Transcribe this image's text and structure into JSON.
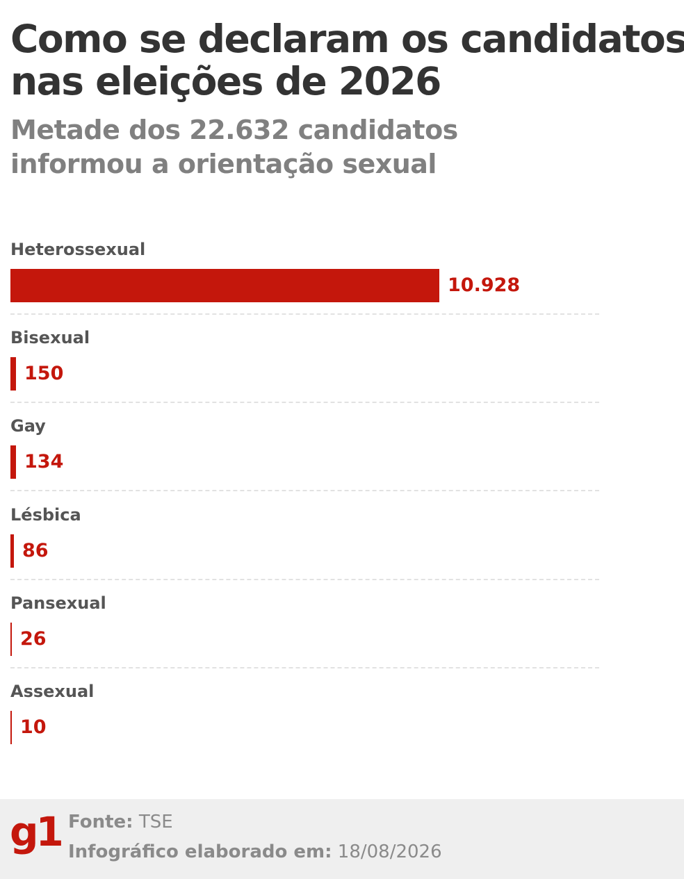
{
  "header": {
    "title_line1": "Como se declaram os candidatos",
    "title_line2": "nas eleições de 2026",
    "subtitle_line1": "Metade dos 22.632 candidatos",
    "subtitle_line2": "informou a orientação sexual"
  },
  "chart_data": {
    "type": "bar",
    "orientation": "horizontal",
    "categories": [
      "Heterossexual",
      "Bisexual",
      "Gay",
      "Lésbica",
      "Pansexual",
      "Assexual"
    ],
    "values": [
      10928,
      150,
      134,
      86,
      26,
      10
    ],
    "value_labels": [
      "10.928",
      "150",
      "134",
      "86",
      "26",
      "10"
    ],
    "bar_color": "#c4170c",
    "grid": false
  },
  "footer": {
    "logo_text": "g1",
    "source_label": "Fonte:",
    "source_value": "TSE",
    "date_label": "Infográfico elaborado em:",
    "date_value": "18/08/2026"
  },
  "colors": {
    "accent": "#c4170c",
    "title": "#333333",
    "subtitle": "#808080",
    "footer_bg": "#efefef"
  }
}
